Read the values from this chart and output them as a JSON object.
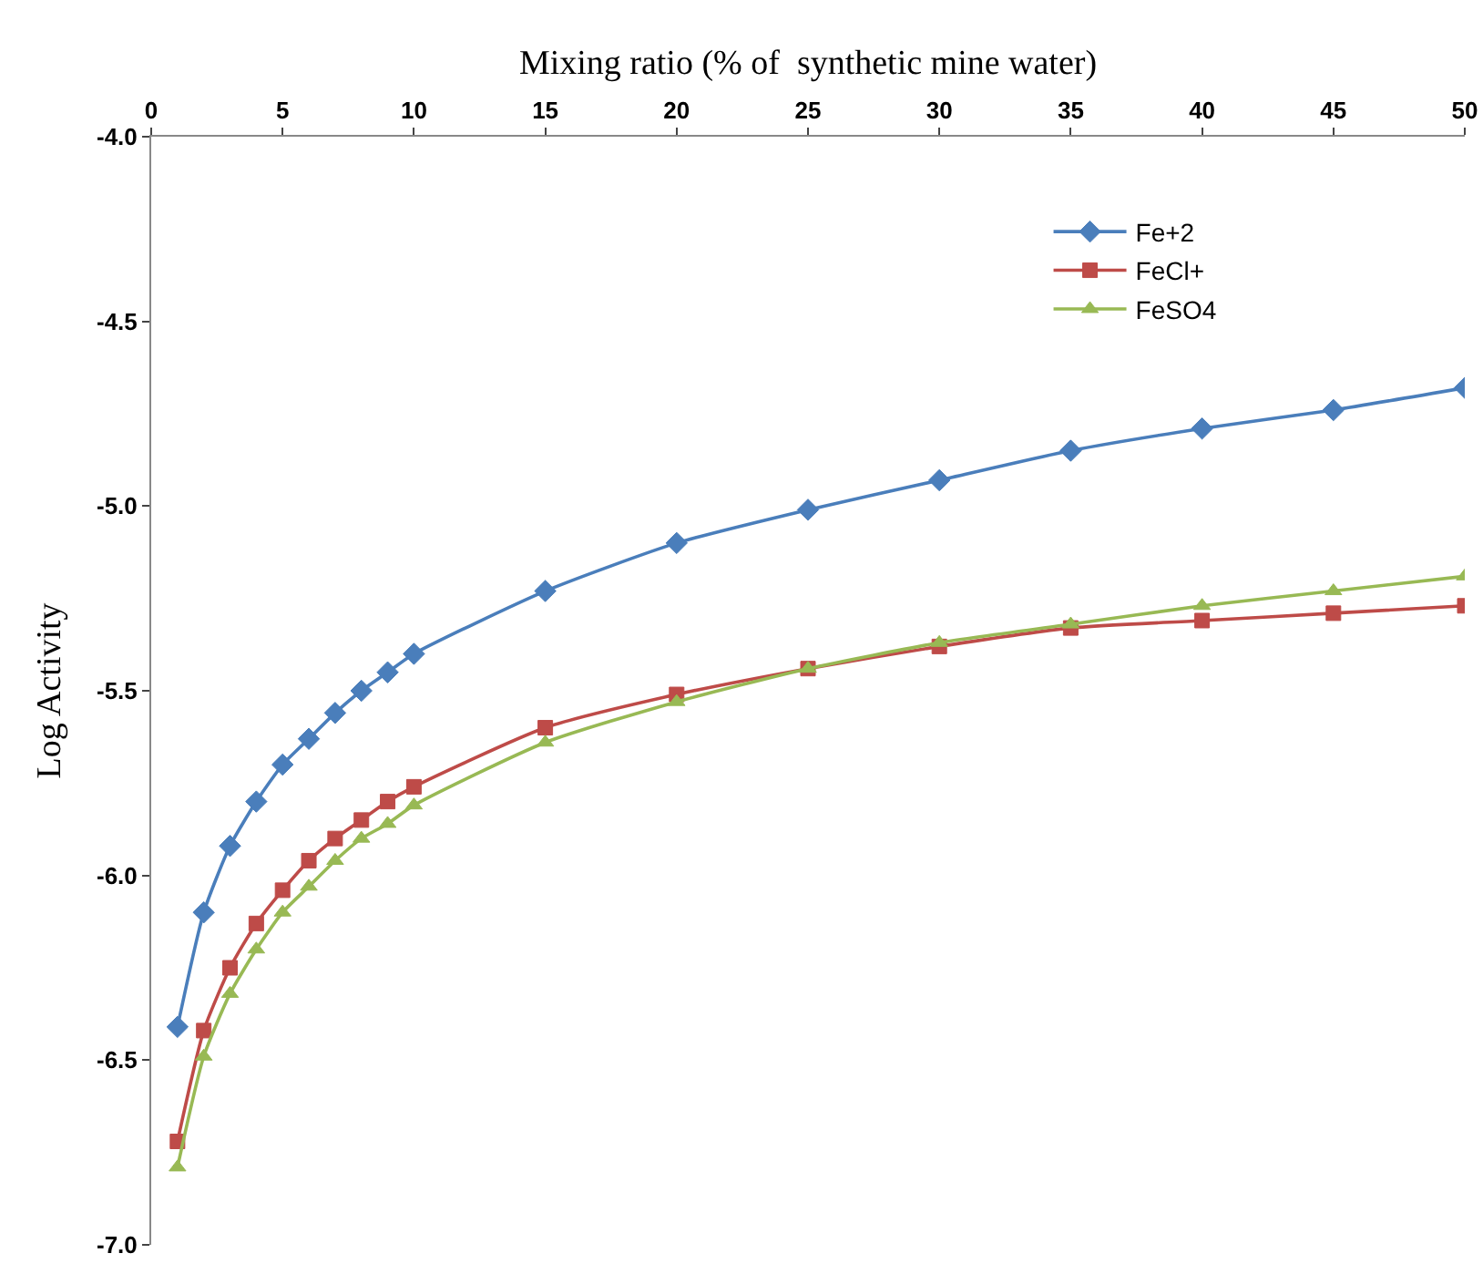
{
  "chart_data": {
    "type": "line",
    "xlabel": "Mixing ratio (% of  synthetic mine water)",
    "ylabel": "Log Activity",
    "x": [
      1,
      2,
      3,
      4,
      5,
      6,
      7,
      8,
      9,
      10,
      15,
      20,
      25,
      30,
      35,
      40,
      45,
      50
    ],
    "series": [
      {
        "name": "Fe+2",
        "color": "#4a7ebb",
        "marker": "diamond",
        "values": [
          -6.41,
          -6.1,
          -5.92,
          -5.8,
          -5.7,
          -5.63,
          -5.56,
          -5.5,
          -5.45,
          -5.4,
          -5.23,
          -5.1,
          -5.01,
          -4.93,
          -4.85,
          -4.79,
          -4.74,
          -4.68
        ]
      },
      {
        "name": "FeCl+",
        "color": "#be4b48",
        "marker": "square",
        "values": [
          -6.72,
          -6.42,
          -6.25,
          -6.13,
          -6.04,
          -5.96,
          -5.9,
          -5.85,
          -5.8,
          -5.76,
          -5.6,
          -5.51,
          -5.44,
          -5.38,
          -5.33,
          -5.31,
          -5.29,
          -5.27
        ]
      },
      {
        "name": "FeSO4",
        "color": "#98b954",
        "marker": "triangle",
        "values": [
          -6.79,
          -6.49,
          -6.32,
          -6.2,
          -6.1,
          -6.03,
          -5.96,
          -5.9,
          -5.86,
          -5.81,
          -5.64,
          -5.53,
          -5.44,
          -5.37,
          -5.32,
          -5.27,
          -5.23,
          -5.19
        ]
      }
    ],
    "xlim": [
      0,
      50
    ],
    "xticks": [
      0,
      5,
      10,
      15,
      20,
      25,
      30,
      35,
      40,
      45,
      50
    ],
    "ylim": [
      -7,
      -4
    ],
    "yticks": [
      {
        "value": -7,
        "label": "-7.0"
      },
      {
        "value": -6.5,
        "label": "-6.5"
      },
      {
        "value": -6,
        "label": "-6.0"
      },
      {
        "value": -5.5,
        "label": "-5.5"
      },
      {
        "value": -5,
        "label": "-5.0"
      },
      {
        "value": -4.5,
        "label": "-4.5"
      },
      {
        "value": -4,
        "label": "-4.0"
      }
    ],
    "grid": false,
    "legend": "top right",
    "line_style": "solid"
  }
}
